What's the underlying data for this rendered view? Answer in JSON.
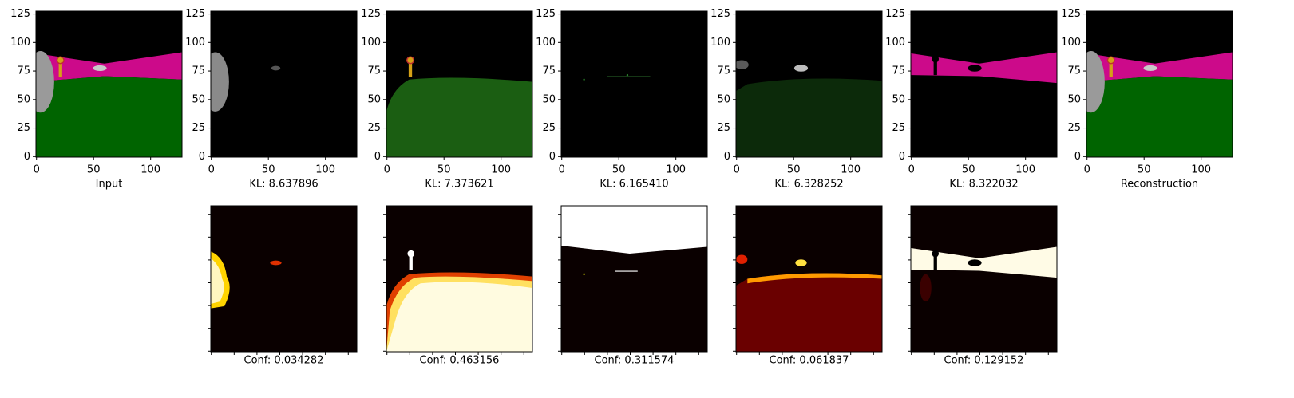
{
  "top_panels": [
    {
      "label": "Input"
    },
    {
      "label": "KL: 8.637896"
    },
    {
      "label": "KL: 7.373621"
    },
    {
      "label": "KL: 6.165410"
    },
    {
      "label": "KL: 6.328252"
    },
    {
      "label": "KL: 8.322032"
    },
    {
      "label": "Reconstruction"
    }
  ],
  "bottom_panels": [
    {
      "label": "Conf: 0.034282"
    },
    {
      "label": "Conf: 0.463156"
    },
    {
      "label": "Conf: 0.311574"
    },
    {
      "label": "Conf: 0.061837"
    },
    {
      "label": "Conf: 0.129152"
    }
  ],
  "xlim": [
    -0.5,
    127.5
  ],
  "ylim": [
    127.5,
    -0.5
  ],
  "xticks": [
    0,
    50,
    100
  ],
  "yticks": [
    0,
    25,
    50,
    75,
    100,
    125
  ],
  "bottom_ticks": [
    0,
    20,
    40,
    60,
    80,
    100,
    120
  ]
}
